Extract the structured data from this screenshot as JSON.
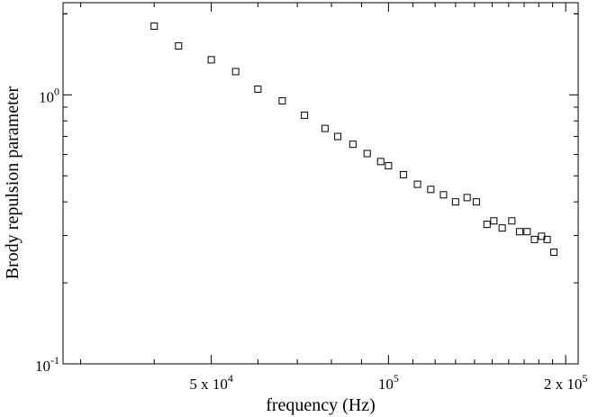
{
  "chart_data": {
    "type": "scatter",
    "xlabel": "frequency (Hz)",
    "ylabel": "Brody repulsion parameter",
    "x_scale": "log",
    "y_scale": "log",
    "xlim": [
      28000,
      210000
    ],
    "ylim": [
      0.1,
      2.2
    ],
    "x_tick_labels": [
      {
        "value": 50000,
        "base": "5 x 10",
        "exp": "4"
      },
      {
        "value": 100000,
        "base": "10",
        "exp": "5"
      },
      {
        "value": 200000,
        "base": "2 x 10",
        "exp": "5"
      }
    ],
    "y_tick_labels": [
      {
        "value": 1,
        "base": "10",
        "exp": "0"
      },
      {
        "value": 0.1,
        "base": "10",
        "exp": "-1"
      }
    ],
    "marker": "open-square",
    "grid": false,
    "series": [
      {
        "points": [
          {
            "x": 40000,
            "y": 1.8
          },
          {
            "x": 44000,
            "y": 1.52
          },
          {
            "x": 50000,
            "y": 1.35
          },
          {
            "x": 55000,
            "y": 1.22
          },
          {
            "x": 60000,
            "y": 1.05
          },
          {
            "x": 66000,
            "y": 0.95
          },
          {
            "x": 72000,
            "y": 0.84
          },
          {
            "x": 78000,
            "y": 0.75
          },
          {
            "x": 82000,
            "y": 0.7
          },
          {
            "x": 87000,
            "y": 0.655
          },
          {
            "x": 92000,
            "y": 0.605
          },
          {
            "x": 97000,
            "y": 0.565
          },
          {
            "x": 100000,
            "y": 0.545
          },
          {
            "x": 106000,
            "y": 0.505
          },
          {
            "x": 112000,
            "y": 0.465
          },
          {
            "x": 118000,
            "y": 0.445
          },
          {
            "x": 124000,
            "y": 0.425
          },
          {
            "x": 130000,
            "y": 0.4
          },
          {
            "x": 136000,
            "y": 0.415
          },
          {
            "x": 141000,
            "y": 0.4
          },
          {
            "x": 147000,
            "y": 0.33
          },
          {
            "x": 151000,
            "y": 0.34
          },
          {
            "x": 156000,
            "y": 0.32
          },
          {
            "x": 162000,
            "y": 0.34
          },
          {
            "x": 167000,
            "y": 0.31
          },
          {
            "x": 172000,
            "y": 0.31
          },
          {
            "x": 177000,
            "y": 0.29
          },
          {
            "x": 182000,
            "y": 0.298
          },
          {
            "x": 186000,
            "y": 0.29
          },
          {
            "x": 191000,
            "y": 0.26
          }
        ]
      }
    ]
  }
}
